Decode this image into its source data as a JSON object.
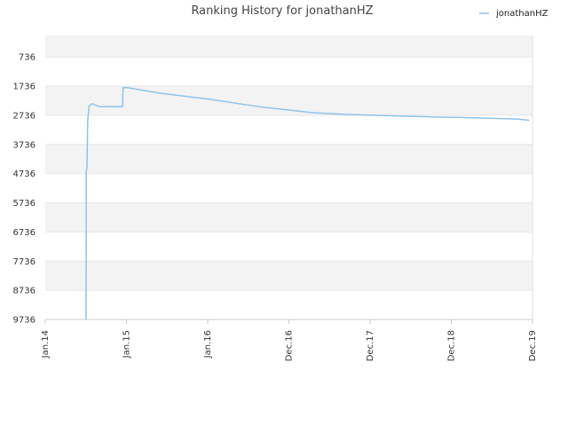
{
  "chart_data": {
    "type": "line",
    "title": "Ranking History for jonathanHZ",
    "xlabel": "",
    "ylabel": "",
    "y_inverted": true,
    "ylim": [
      9736,
      0
    ],
    "yticks": [
      736,
      1736,
      2736,
      3736,
      4736,
      5736,
      6736,
      7736,
      8736,
      9736
    ],
    "xticks": [
      "Jan.14",
      "Jan.15",
      "Jan.16",
      "Dec.16",
      "Dec.17",
      "Dec.18",
      "Dec.19"
    ],
    "xlim": [
      "2014-01",
      "2019-12"
    ],
    "grid": true,
    "legend_position": "top-right",
    "series": [
      {
        "name": "jonathanHZ",
        "color": "#8ec3ea",
        "x": [
          "2014-07-01",
          "2014-07-02",
          "2014-07-05",
          "2014-07-08",
          "2014-07-10",
          "2014-07-12",
          "2014-07-14",
          "2014-07-20",
          "2014-07-28",
          "2014-08-10",
          "2014-09-01",
          "2014-12-10",
          "2014-12-12",
          "2015-01-01",
          "2015-06-01",
          "2016-01-01",
          "2016-08-01",
          "2017-04-01",
          "2017-07-01",
          "2017-10-01",
          "2018-01-01",
          "2018-04-01",
          "2018-07-01",
          "2018-10-01",
          "2019-01-01",
          "2019-04-01",
          "2019-07-01",
          "2019-10-01",
          "2019-11-15"
        ],
        "values": [
          9736,
          4636,
          4536,
          2936,
          2736,
          2636,
          2436,
          2386,
          2336,
          2386,
          2436,
          2436,
          1786,
          1786,
          1986,
          2186,
          2436,
          2646,
          2686,
          2716,
          2736,
          2756,
          2776,
          2796,
          2806,
          2826,
          2846,
          2866,
          2906
        ]
      }
    ]
  }
}
